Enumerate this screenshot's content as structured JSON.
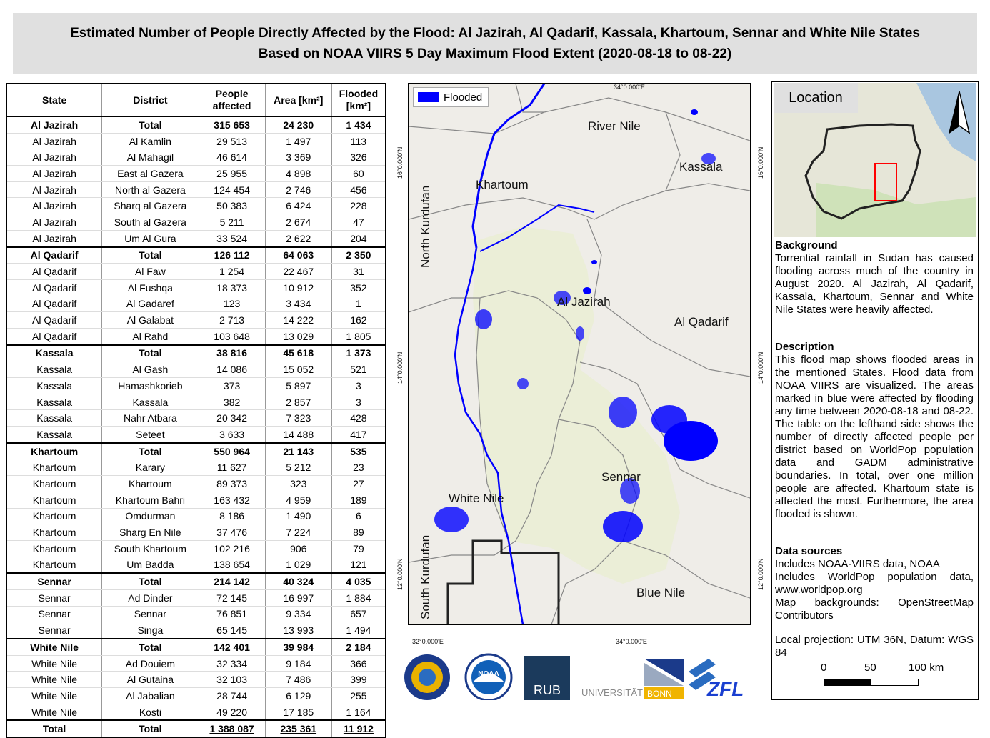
{
  "title": {
    "line1": "Estimated Number of People Directly Affected by the Flood: Al Jazirah, Al Qadarif, Kassala, Khartoum, Sennar and White Nile States",
    "line2": "Based on NOAA VIIRS 5 Day Maximum Flood Extent (2020-08-18 to 08-22)"
  },
  "table": {
    "headers": {
      "state": "State",
      "district": "District",
      "people_1": "People",
      "people_2": "affected",
      "area": "Area [km²]",
      "flooded_1": "Flooded",
      "flooded_2": "[km²]"
    },
    "rows": [
      {
        "state": "Al Jazirah",
        "district": "Total",
        "people": "315 653",
        "area": "24 230",
        "flooded": "1 434",
        "kind": "total"
      },
      {
        "state": "Al Jazirah",
        "district": "Al Kamlin",
        "people": "29 513",
        "area": "1 497",
        "flooded": "113"
      },
      {
        "state": "Al Jazirah",
        "district": "Al Mahagil",
        "people": "46 614",
        "area": "3 369",
        "flooded": "326"
      },
      {
        "state": "Al Jazirah",
        "district": "East al Gazera",
        "people": "25 955",
        "area": "4 898",
        "flooded": "60"
      },
      {
        "state": "Al Jazirah",
        "district": "North al Gazera",
        "people": "124 454",
        "area": "2 746",
        "flooded": "456"
      },
      {
        "state": "Al Jazirah",
        "district": "Sharq al Gazera",
        "people": "50 383",
        "area": "6 424",
        "flooded": "228"
      },
      {
        "state": "Al Jazirah",
        "district": "South al Gazera",
        "people": "5 211",
        "area": "2 674",
        "flooded": "47"
      },
      {
        "state": "Al Jazirah",
        "district": "Um Al Gura",
        "people": "33 524",
        "area": "2 622",
        "flooded": "204"
      },
      {
        "state": "Al Qadarif",
        "district": "Total",
        "people": "126 112",
        "area": "64 063",
        "flooded": "2 350",
        "kind": "total"
      },
      {
        "state": "Al Qadarif",
        "district": "Al Faw",
        "people": "1 254",
        "area": "22 467",
        "flooded": "31"
      },
      {
        "state": "Al Qadarif",
        "district": "Al Fushqa",
        "people": "18 373",
        "area": "10 912",
        "flooded": "352"
      },
      {
        "state": "Al Qadarif",
        "district": "Al Gadaref",
        "people": "123",
        "area": "3 434",
        "flooded": "1"
      },
      {
        "state": "Al Qadarif",
        "district": "Al Galabat",
        "people": "2 713",
        "area": "14 222",
        "flooded": "162"
      },
      {
        "state": "Al Qadarif",
        "district": "Al Rahd",
        "people": "103 648",
        "area": "13 029",
        "flooded": "1 805"
      },
      {
        "state": "Kassala",
        "district": "Total",
        "people": "38 816",
        "area": "45 618",
        "flooded": "1 373",
        "kind": "total"
      },
      {
        "state": "Kassala",
        "district": "Al Gash",
        "people": "14 086",
        "area": "15 052",
        "flooded": "521"
      },
      {
        "state": "Kassala",
        "district": "Hamashkorieb",
        "people": "373",
        "area": "5 897",
        "flooded": "3"
      },
      {
        "state": "Kassala",
        "district": "Kassala",
        "people": "382",
        "area": "2 857",
        "flooded": "3"
      },
      {
        "state": "Kassala",
        "district": "Nahr Atbara",
        "people": "20 342",
        "area": "7 323",
        "flooded": "428"
      },
      {
        "state": "Kassala",
        "district": "Seteet",
        "people": "3 633",
        "area": "14 488",
        "flooded": "417"
      },
      {
        "state": "Khartoum",
        "district": "Total",
        "people": "550 964",
        "area": "21 143",
        "flooded": "535",
        "kind": "total"
      },
      {
        "state": "Khartoum",
        "district": "Karary",
        "people": "11 627",
        "area": "5 212",
        "flooded": "23"
      },
      {
        "state": "Khartoum",
        "district": "Khartoum",
        "people": "89 373",
        "area": "323",
        "flooded": "27"
      },
      {
        "state": "Khartoum",
        "district": "Khartoum Bahri",
        "people": "163 432",
        "area": "4 959",
        "flooded": "189"
      },
      {
        "state": "Khartoum",
        "district": "Omdurman",
        "people": "8 186",
        "area": "1 490",
        "flooded": "6"
      },
      {
        "state": "Khartoum",
        "district": "Sharg En Nile",
        "people": "37 476",
        "area": "7 224",
        "flooded": "89"
      },
      {
        "state": "Khartoum",
        "district": "South Khartoum",
        "people": "102 216",
        "area": "906",
        "flooded": "79"
      },
      {
        "state": "Khartoum",
        "district": "Um Badda",
        "people": "138 654",
        "area": "1 029",
        "flooded": "121"
      },
      {
        "state": "Sennar",
        "district": "Total",
        "people": "214 142",
        "area": "40 324",
        "flooded": "4 035",
        "kind": "total"
      },
      {
        "state": "Sennar",
        "district": "Ad Dinder",
        "people": "72 145",
        "area": "16 997",
        "flooded": "1 884"
      },
      {
        "state": "Sennar",
        "district": "Sennar",
        "people": "76 851",
        "area": "9 334",
        "flooded": "657"
      },
      {
        "state": "Sennar",
        "district": "Singa",
        "people": "65 145",
        "area": "13 993",
        "flooded": "1 494"
      },
      {
        "state": "White Nile",
        "district": "Total",
        "people": "142 401",
        "area": "39 984",
        "flooded": "2 184",
        "kind": "total"
      },
      {
        "state": "White Nile",
        "district": "Ad Douiem",
        "people": "32 334",
        "area": "9 184",
        "flooded": "366"
      },
      {
        "state": "White Nile",
        "district": "Al Gutaina",
        "people": "32 103",
        "area": "7 486",
        "flooded": "399"
      },
      {
        "state": "White Nile",
        "district": "Al Jabalian",
        "people": "28 744",
        "area": "6 129",
        "flooded": "255"
      },
      {
        "state": "White Nile",
        "district": "Kosti",
        "people": "49 220",
        "area": "17 185",
        "flooded": "1 164"
      }
    ],
    "grand_total": {
      "state": "Total",
      "district": "Total",
      "people": "1 388 087",
      "area": "235 361",
      "flooded": "11 912"
    }
  },
  "map": {
    "legend_label": "Flooded",
    "flood_color": "#0000ff",
    "labels": {
      "river_nile": "River Nile",
      "kassala": "Kassala",
      "khartoum": "Khartoum",
      "north_kurdufan": "North Kurdufan",
      "al_jazirah": "Al Jazirah",
      "al_qadarif": "Al Qadarif",
      "sennar": "Sennar",
      "white_nile": "White Nile",
      "south_kurdufan": "South Kurdufan",
      "blue_nile": "Blue Nile"
    },
    "grid": {
      "top_lon": "34°0.000'E",
      "bottom_lon_left": "32°0.000'E",
      "bottom_lon_right": "34°0.000'E",
      "lat_16_left": "16°0.000'N",
      "lat_14_left": "14°0.000'N",
      "lat_12_left": "12°0.000'N",
      "lat_16_right": "16°0.000'N",
      "lat_14_right": "14°0.000'N",
      "lat_12_right": "12°0.000'N"
    }
  },
  "panel": {
    "location_title": "Location",
    "background_heading": "Background",
    "background_text": "Torrential rainfall in Sudan has caused flooding across much of the country in August 2020. Al Jazirah, Al Qadarif, Kassala, Khartoum, Sennar and White Nile States were heavily affected.",
    "description_heading": "Description",
    "description_text": "This flood map shows flooded areas in the mentioned States. Flood data from NOAA VIIRS are visualized. The areas marked in blue were affected by flooding any time between 2020-08-18 and 08-22. The table on the lefthand side shows the number of directly affected people per district based on WorldPop population data and GADM administrative boundaries. In total, over one million people are affected. Khartoum state is affected the most. Furthermore, the area flooded is shown.",
    "sources_heading": "Data sources",
    "sources_lines": [
      "Includes NOAA-VIIRS data, NOAA",
      "Includes WorldPop population data, www.worldpop.org",
      "Map backgrounds: OpenStreetMap Contributors"
    ],
    "projection": "Local projection: UTM 36N, Datum: WGS 84",
    "scale": {
      "t0": "0",
      "t1": "50",
      "t2": "100 km"
    }
  },
  "logos": {
    "noaa": "NOAA",
    "rub": "RUB",
    "bonn_a": "UNIVERSITÄT",
    "bonn_b": "BONN",
    "zfl": "ZFL"
  },
  "colors": {
    "title_bg": "#e0e0e0",
    "map_bg": "#efede8",
    "region_highlight": "#e8efc8",
    "inset_box": "#ff0000"
  }
}
